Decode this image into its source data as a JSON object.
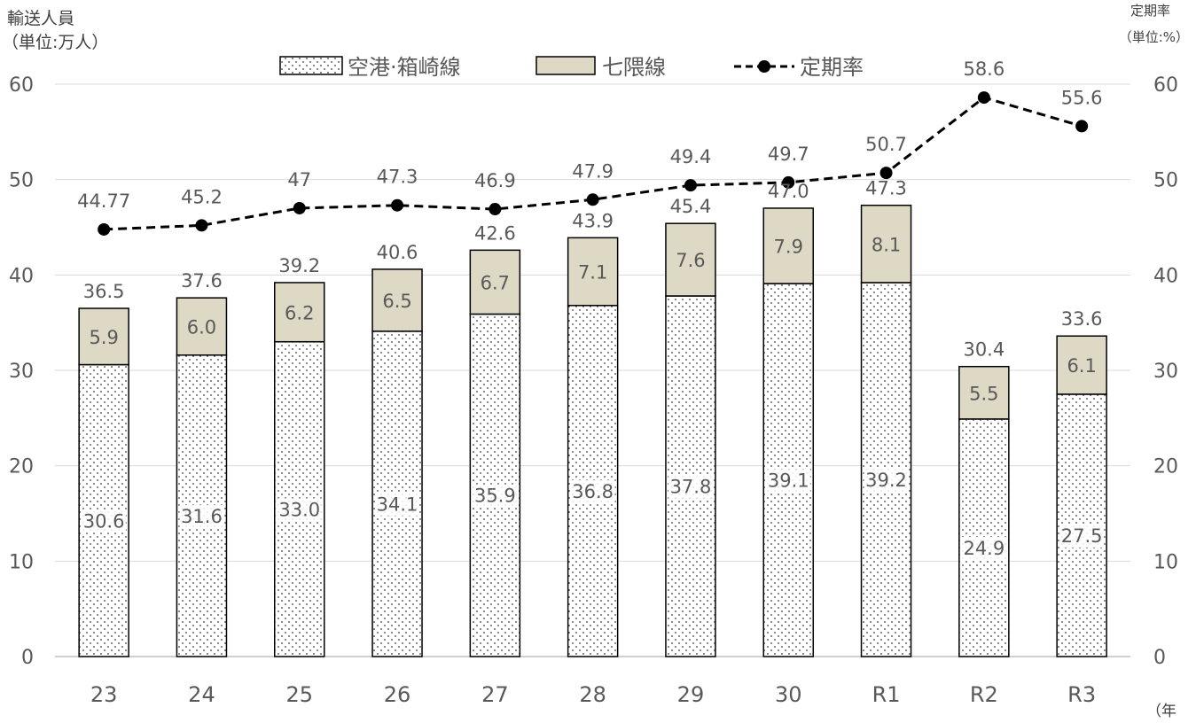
{
  "chart_data": {
    "type": "bar",
    "stacked": true,
    "categories": [
      "23",
      "24",
      "25",
      "26",
      "27",
      "28",
      "29",
      "30",
      "R1",
      "R2",
      "R3"
    ],
    "series": [
      {
        "name": "空港·箱崎線",
        "type": "bar",
        "axis": "left",
        "pattern": "dots",
        "values": [
          30.6,
          31.6,
          33.0,
          34.1,
          35.9,
          36.8,
          37.8,
          39.1,
          39.2,
          24.9,
          27.5
        ],
        "labels": [
          "30.6",
          "31.6",
          "33.0",
          "34.1",
          "35.9",
          "36.8",
          "37.8",
          "39.1",
          "39.2",
          "24.9",
          "27.5"
        ]
      },
      {
        "name": "七隈線",
        "type": "bar",
        "axis": "left",
        "color": "#ddd9c4",
        "values": [
          5.9,
          6.0,
          6.2,
          6.5,
          6.7,
          7.1,
          7.6,
          7.9,
          8.1,
          5.5,
          6.1
        ],
        "labels": [
          "5.9",
          "6.0",
          "6.2",
          "6.5",
          "6.7",
          "7.1",
          "7.6",
          "7.9",
          "8.1",
          "5.5",
          "6.1"
        ]
      },
      {
        "name": "定期率",
        "type": "line",
        "axis": "right",
        "style": "dashed",
        "color": "#000000",
        "values": [
          44.77,
          45.2,
          47,
          47.3,
          46.9,
          47.9,
          49.4,
          49.7,
          50.7,
          58.6,
          55.6
        ],
        "labels": [
          "44.77",
          "45.2",
          "47",
          "47.3",
          "46.9",
          "47.9",
          "49.4",
          "49.7",
          "50.7",
          "58.6",
          "55.6"
        ]
      }
    ],
    "totals": [
      "36.5",
      "37.6",
      "39.2",
      "40.6",
      "42.6",
      "43.9",
      "45.4",
      "47.0",
      "47.3",
      "30.4",
      "33.6"
    ],
    "total_values": [
      36.5,
      37.6,
      39.2,
      40.6,
      42.6,
      43.9,
      45.4,
      47.0,
      47.3,
      30.4,
      33.6
    ],
    "ylim": [
      0,
      60
    ],
    "y2lim": [
      0,
      60
    ],
    "yticks": [
      "0",
      "10",
      "20",
      "30",
      "40",
      "50",
      "60"
    ],
    "y2ticks": [
      "0",
      "10",
      "20",
      "30",
      "40",
      "50",
      "60"
    ],
    "ylabel_line1": "輸送人員",
    "ylabel_line2": "（単位:万人）",
    "y2label_line1": "定期率",
    "y2label_line2": "（単位:%）",
    "xlabel": "（年",
    "grid": true,
    "legend_position": "top"
  }
}
